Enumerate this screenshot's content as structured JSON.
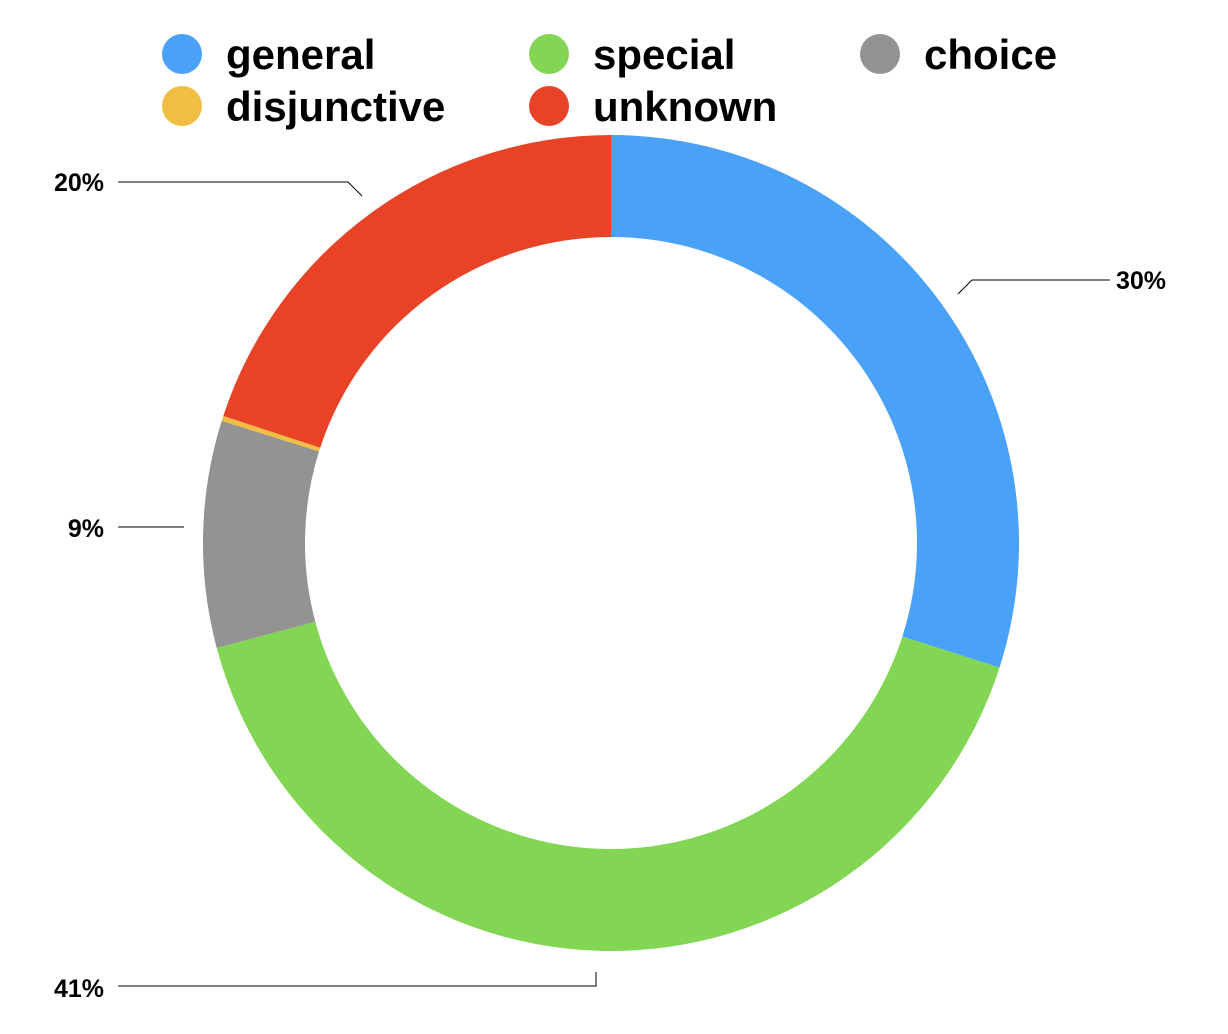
{
  "chart_data": {
    "type": "pie",
    "donut": true,
    "legend_position": "top",
    "start_angle_deg": 0,
    "direction": "clockwise",
    "categories": [
      "general",
      "special",
      "choice",
      "disjunctive",
      "unknown"
    ],
    "values": [
      30,
      41,
      9,
      0.2,
      20
    ],
    "colors": [
      "#4aa2f8",
      "#82d654",
      "#939393",
      "#f1bd43",
      "#e84326"
    ],
    "data_labels": [
      "30%",
      "41%",
      "9%",
      "",
      "20%"
    ],
    "legend": [
      {
        "name": "general",
        "color": "#4aa2f8"
      },
      {
        "name": "special",
        "color": "#82d654"
      },
      {
        "name": "choice",
        "color": "#939393"
      },
      {
        "name": "disjunctive",
        "color": "#f1bd43"
      },
      {
        "name": "unknown",
        "color": "#e84326"
      }
    ]
  }
}
